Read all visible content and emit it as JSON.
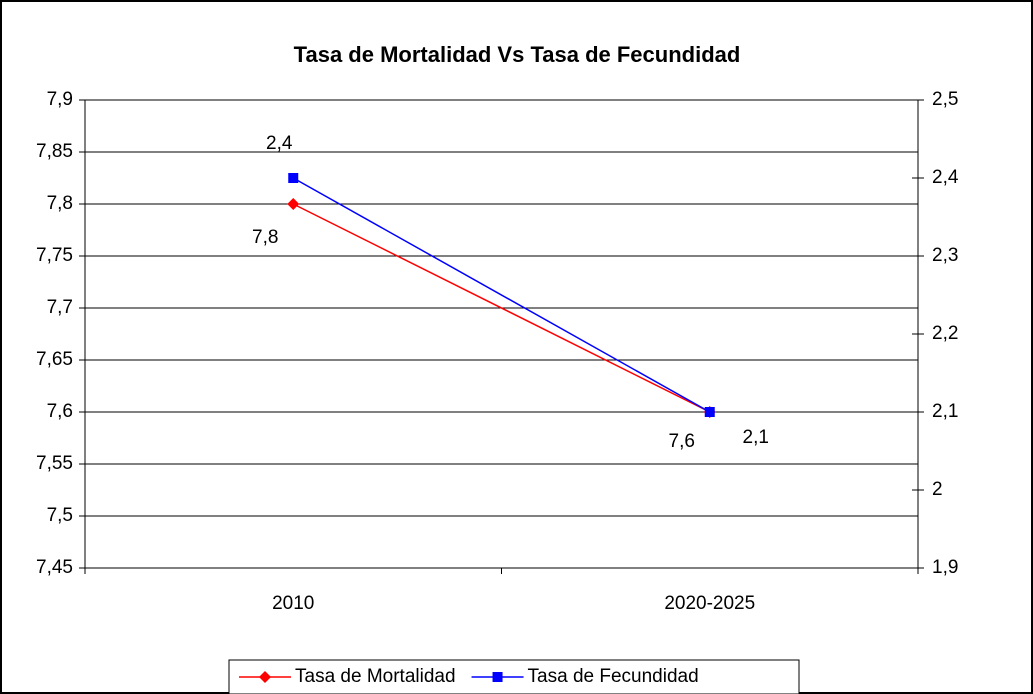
{
  "chart_data": {
    "type": "line",
    "title": "Tasa de Mortalidad Vs Tasa de Fecundidad",
    "categories": [
      "2010",
      "2020-2025"
    ],
    "series": [
      {
        "name": "Tasa de Mortalidad",
        "color": "#ff0000",
        "marker": "diamond",
        "values": [
          7.8,
          7.6
        ],
        "value_labels": [
          "7,8",
          "7,6"
        ]
      },
      {
        "name": "Tasa de Fecundidad",
        "color": "#0000ff",
        "marker": "square",
        "axis": "y2",
        "values": [
          2.4,
          2.1
        ],
        "value_labels": [
          "2,4",
          "2,1"
        ]
      }
    ],
    "ylim": [
      7.45,
      7.9
    ],
    "yticks": [
      {
        "value": 7.45,
        "label": "7,45"
      },
      {
        "value": 7.5,
        "label": "7,5"
      },
      {
        "value": 7.55,
        "label": "7,55"
      },
      {
        "value": 7.6,
        "label": "7,6"
      },
      {
        "value": 7.65,
        "label": "7,65"
      },
      {
        "value": 7.7,
        "label": "7,7"
      },
      {
        "value": 7.75,
        "label": "7,75"
      },
      {
        "value": 7.8,
        "label": "7,8"
      },
      {
        "value": 7.85,
        "label": "7,85"
      },
      {
        "value": 7.9,
        "label": "7,9"
      }
    ],
    "y2lim": [
      1.9,
      2.5
    ],
    "y2ticks": [
      {
        "value": 1.9,
        "label": "1,9"
      },
      2,
      {
        "value": 2.1,
        "label": "2,1"
      },
      {
        "value": 2.2,
        "label": "2,2"
      },
      {
        "value": 2.3,
        "label": "2,3"
      },
      {
        "value": 2.4,
        "label": "2,4"
      },
      {
        "value": 2.5,
        "label": "2,5"
      }
    ],
    "grid": true,
    "legend": "bottom"
  }
}
